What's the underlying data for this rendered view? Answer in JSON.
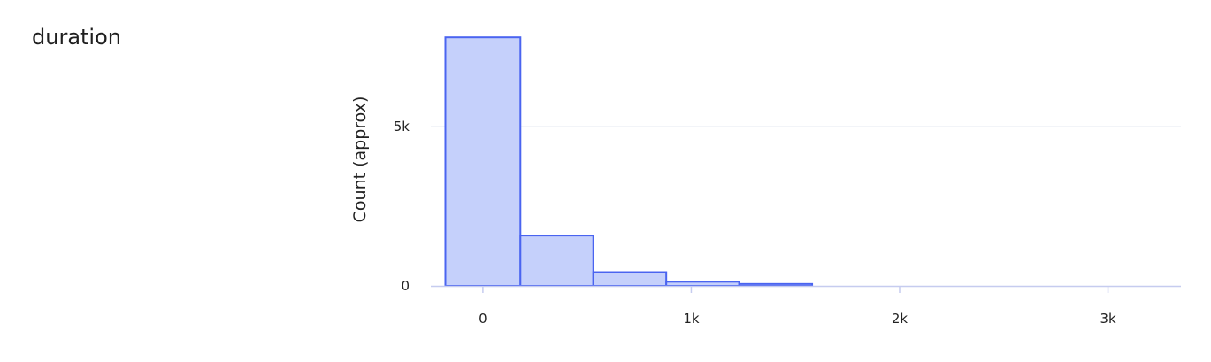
{
  "field": {
    "name": "duration"
  },
  "colors": {
    "bar_fill": "#c5d0fb",
    "bar_stroke": "#4a64f0",
    "grid": "#e6e8f0",
    "axis": "#c6ccef"
  },
  "chart_data": {
    "type": "bar",
    "title": "",
    "xlabel": "",
    "ylabel": "Count (approx)",
    "bins": [
      {
        "x0": -180,
        "x1": 180,
        "value": 7800
      },
      {
        "x0": 180,
        "x1": 530,
        "value": 1580
      },
      {
        "x0": 530,
        "x1": 880,
        "value": 430
      },
      {
        "x0": 880,
        "x1": 1230,
        "value": 130
      },
      {
        "x0": 1230,
        "x1": 1580,
        "value": 60
      }
    ],
    "xlim": [
      -250,
      3350
    ],
    "ylim": [
      0,
      8000
    ],
    "xticks": [
      {
        "value": 0,
        "label": "0"
      },
      {
        "value": 1000,
        "label": "1k"
      },
      {
        "value": 2000,
        "label": "2k"
      },
      {
        "value": 3000,
        "label": "3k"
      }
    ],
    "yticks": [
      {
        "value": 0,
        "label": "0"
      },
      {
        "value": 5000,
        "label": "5k"
      }
    ],
    "grid": "horizontal"
  }
}
